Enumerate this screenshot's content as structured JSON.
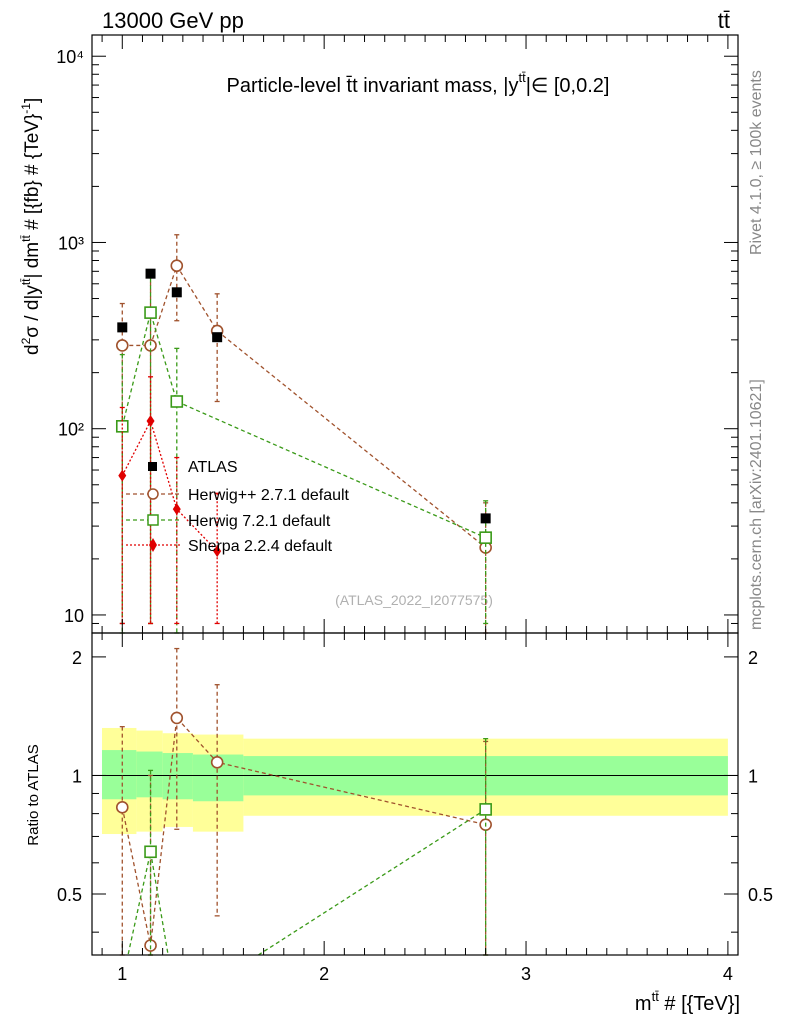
{
  "header": {
    "energy": "13000 GeV pp",
    "process": "tt̄",
    "title_main": "Particle-level t̄t invariant mass, |y",
    "title_sup": "tt̄",
    "title_tail": "|∈ [0,0.2]",
    "side_rivet": "Rivet 4.1.0, ≥ 100k events",
    "side_mcplots": "mcplots.cern.ch [arXiv:2401.10621]",
    "analysis_id": "(ATLAS_2022_I2077575)"
  },
  "axes": {
    "ylabel_main": "d²σ / d|y^tt̄| dm^tt̄ # [{fb} # {TeV}⁻¹]",
    "ylabel_ratio": "Ratio to ATLAS",
    "xlabel": "m^tt̄ # [{TeV}]",
    "main_yticks": [
      {
        "value": 10,
        "label": "10"
      },
      {
        "value": 100,
        "label": "10²"
      },
      {
        "value": 1000,
        "label": "10³"
      },
      {
        "value": 10000,
        "label": "10⁴"
      }
    ],
    "ratio_yticks": [
      {
        "value": 0.5,
        "label": "0.5"
      },
      {
        "value": 1,
        "label": "1"
      },
      {
        "value": 2,
        "label": "2"
      }
    ],
    "xticks": [
      {
        "value": 1,
        "label": "1"
      },
      {
        "value": 2,
        "label": "2"
      },
      {
        "value": 3,
        "label": "3"
      },
      {
        "value": 4,
        "label": "4"
      }
    ]
  },
  "legend": {
    "atlas": "ATLAS",
    "herwigpp": "Herwig++ 2.7.1 default",
    "herwig7": "Herwig 7.2.1 default",
    "sherpa": "Sherpa 2.2.4 default"
  },
  "colors": {
    "data": "#000000",
    "herwigpp": "#a0522d",
    "herwig7": "#3a9a18",
    "sherpa": "#e00000",
    "band_inner": "#99ff99",
    "band_outer": "#ffff99"
  },
  "chart_data": {
    "type": "scatter",
    "xlim": [
      0.85,
      4.05
    ],
    "ylim": [
      8,
      13000
    ],
    "yscale": "log",
    "ratio_ylim": [
      0.35,
      2.3
    ],
    "ratio_yscale": "log",
    "bins": [
      0.8,
      1.07,
      1.2,
      1.35,
      1.6,
      4.0
    ],
    "data": {
      "name": "ATLAS",
      "x": [
        1.0,
        1.14,
        1.27,
        1.47,
        2.8
      ],
      "y": [
        350,
        680,
        540,
        310,
        33
      ]
    },
    "series": [
      {
        "name": "Herwig++ 2.7.1 default",
        "x": [
          1.0,
          1.14,
          1.27,
          1.47,
          2.8
        ],
        "y": [
          280,
          280,
          750,
          335,
          23
        ],
        "yerr_up": [
          470,
          670,
          1100,
          530,
          40
        ],
        "yerr_down": [
          9,
          9,
          380,
          140,
          8
        ]
      },
      {
        "name": "Herwig 7.2.1 default",
        "x": [
          1.0,
          1.14,
          1.27,
          1.47,
          2.8
        ],
        "y": [
          103,
          420,
          140,
          0,
          26
        ],
        "yerr_up": [
          250,
          700,
          270,
          0,
          41
        ],
        "yerr_down": [
          8,
          9,
          8,
          0,
          9
        ]
      },
      {
        "name": "Sherpa 2.2.4 default",
        "x": [
          1.0,
          1.14,
          1.27,
          1.47,
          2.8
        ],
        "y": [
          56,
          110,
          37,
          22,
          0
        ],
        "yerr_up": [
          130,
          190,
          70,
          45,
          0
        ],
        "yerr_down": [
          9,
          9,
          9,
          9,
          0
        ]
      }
    ],
    "ratio": {
      "band_inner": [
        [
          0.87,
          1.16
        ],
        [
          0.88,
          1.15
        ],
        [
          0.87,
          1.14
        ],
        [
          0.86,
          1.13
        ],
        [
          0.89,
          1.12
        ]
      ],
      "band_outer": [
        [
          0.71,
          1.32
        ],
        [
          0.72,
          1.3
        ],
        [
          0.74,
          1.28
        ],
        [
          0.72,
          1.27
        ],
        [
          0.79,
          1.24
        ]
      ],
      "herwigpp": {
        "y": [
          0.83,
          0.37,
          1.4,
          1.08,
          0.75
        ],
        "up": [
          1.33,
          1.0,
          2.1,
          1.7,
          1.22
        ],
        "down": [
          0.3,
          0.3,
          0.73,
          0.44,
          0.3
        ]
      },
      "herwig7": {
        "y": [
          0.3,
          0.64,
          0.26,
          0.3,
          0.82
        ],
        "up": [
          0.65,
          1.03,
          0.5,
          0.3,
          1.24
        ],
        "down": [
          0.3,
          0.3,
          0.3,
          0.3,
          0.3
        ]
      }
    }
  }
}
